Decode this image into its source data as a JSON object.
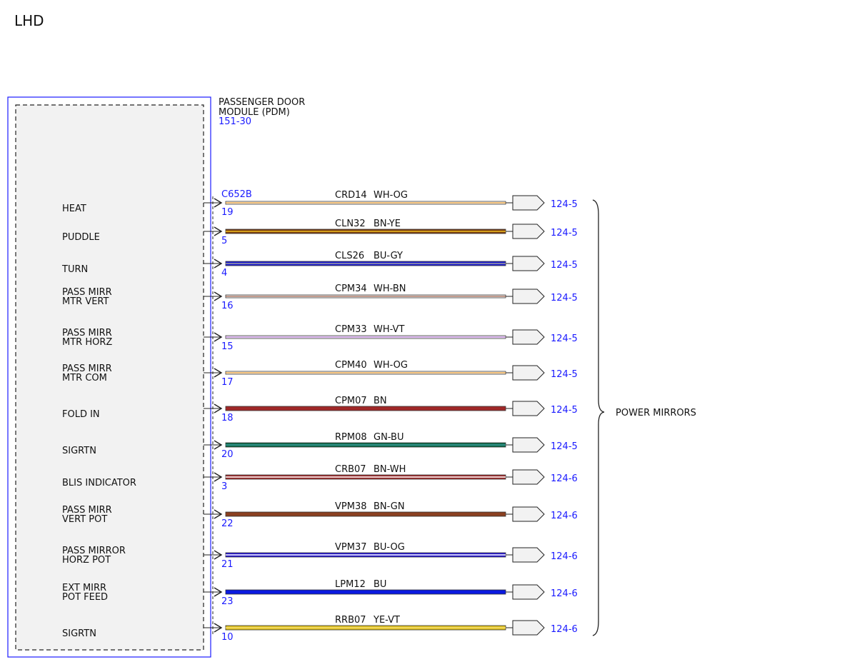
{
  "title": "LHD",
  "module": {
    "name_line1": "PASSENGER DOOR",
    "name_line2": "MODULE (PDM)",
    "ref": "151-30",
    "connector": "C652B"
  },
  "destination": "POWER MIRRORS",
  "circuits": [
    {
      "label": [
        "HEAT"
      ],
      "pin": "19",
      "circuit": "CRD14",
      "color_code": "WH-OG",
      "ref": "124-5",
      "base": "#ffffff",
      "stripe": "#f0a030"
    },
    {
      "label": [
        "PUDDLE"
      ],
      "pin": "5",
      "circuit": "CLN32",
      "color_code": "BN-YE",
      "ref": "124-5",
      "base": "#7a3c10",
      "stripe": "#f0c020"
    },
    {
      "label": [
        "TURN"
      ],
      "pin": "4",
      "circuit": "CLS26",
      "color_code": "BU-GY",
      "ref": "124-5",
      "base": "#1a1ad0",
      "stripe": "#a0a0a0"
    },
    {
      "label": [
        "PASS MIRR",
        "MTR VERT"
      ],
      "pin": "16",
      "circuit": "CPM34",
      "color_code": "WH-BN",
      "ref": "124-5",
      "base": "#ffffff",
      "stripe": "#a0604a"
    },
    {
      "label": [
        "PASS MIRR",
        "MTR HORZ"
      ],
      "pin": "15",
      "circuit": "CPM33",
      "color_code": "WH-VT",
      "ref": "124-5",
      "base": "#ffffff",
      "stripe": "#c080e0"
    },
    {
      "label": [
        "PASS MIRR",
        "MTR COM"
      ],
      "pin": "17",
      "circuit": "CPM40",
      "color_code": "WH-OG",
      "ref": "124-5",
      "base": "#ffffff",
      "stripe": "#f0a030"
    },
    {
      "label": [
        "FOLD IN"
      ],
      "pin": "18",
      "circuit": "CPM07",
      "color_code": "BN",
      "ref": "124-5",
      "base": "#a02828",
      "stripe": "#a02828"
    },
    {
      "label": [
        "SIGRTN"
      ],
      "pin": "20",
      "circuit": "RPM08",
      "color_code": "GN-BU",
      "ref": "124-5",
      "base": "#0e6a4a",
      "stripe": "#3a9a9a"
    },
    {
      "label": [
        "BLIS INDICATOR"
      ],
      "pin": "3",
      "circuit": "CRB07",
      "color_code": "BN-WH",
      "ref": "124-6",
      "base": "#a03030",
      "stripe": "#ffffff"
    },
    {
      "label": [
        "PASS MIRR",
        "VERT POT"
      ],
      "pin": "22",
      "circuit": "VPM38",
      "color_code": "BN-GN",
      "ref": "124-6",
      "base": "#8a4020",
      "stripe": "#8a4020"
    },
    {
      "label": [
        "PASS MIRROR",
        "HORZ POT"
      ],
      "pin": "21",
      "circuit": "VPM37",
      "color_code": "BU-OG",
      "ref": "124-6",
      "base": "#2a1ad0",
      "stripe": "#ffffff"
    },
    {
      "label": [
        "EXT MIRR",
        "POT FEED"
      ],
      "pin": "23",
      "circuit": "LPM12",
      "color_code": "BU",
      "ref": "124-6",
      "base": "#0a1ae0",
      "stripe": "#0a1ae0"
    },
    {
      "label": [
        "SIGRTN"
      ],
      "pin": "10",
      "circuit": "RRB07",
      "color_code": "YE-VT",
      "ref": "124-6",
      "base": "#e0c020",
      "stripe": "#f5e070"
    }
  ]
}
